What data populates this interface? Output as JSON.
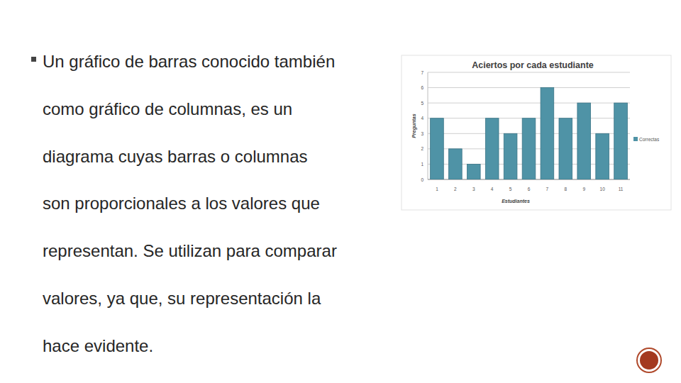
{
  "slide": {
    "bullet_lines": [
      "Un gráfico de barras conocido también",
      "como gráfico de columnas, es un",
      "diagrama cuyas barras o columnas",
      "son proporcionales a los valores que",
      "representan. Se utilizan para comparar",
      "valores, ya que, su representación la",
      "hace evidente."
    ]
  },
  "chart_data": {
    "type": "bar",
    "title": "Aciertos por cada estudiante",
    "x_label": "Estudiantes",
    "y_label": "Preguntas",
    "categories": [
      "1",
      "2",
      "3",
      "4",
      "5",
      "6",
      "7",
      "8",
      "9",
      "10",
      "11"
    ],
    "series": [
      {
        "name": "Correctas",
        "color": "#4f93a6",
        "values": [
          4,
          2,
          1,
          4,
          3,
          4,
          6,
          4,
          5,
          3,
          5
        ]
      }
    ],
    "ylim": [
      0,
      7
    ],
    "yticks": [
      0,
      1,
      2,
      3,
      4,
      5,
      6,
      7
    ],
    "grid": true,
    "legend": "right"
  }
}
